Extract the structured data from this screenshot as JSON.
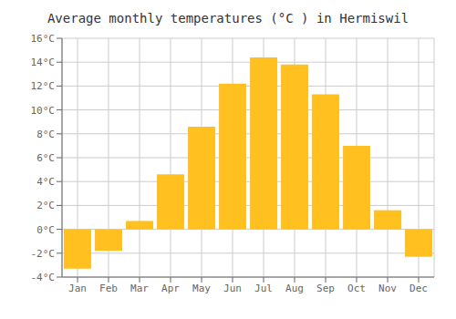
{
  "chart_data": {
    "type": "bar",
    "title": "Average monthly temperatures (°C ) in Hermiswil",
    "categories": [
      "Jan",
      "Feb",
      "Mar",
      "Apr",
      "May",
      "Jun",
      "Jul",
      "Aug",
      "Sep",
      "Oct",
      "Nov",
      "Dec"
    ],
    "values": [
      -3.3,
      -1.8,
      0.7,
      4.6,
      8.6,
      12.2,
      14.4,
      13.8,
      11.3,
      7.0,
      1.6,
      -2.3
    ],
    "color": "#FFC020",
    "ylim": [
      -4,
      16
    ],
    "yticks": [
      {
        "value": -4,
        "label": "-4°C"
      },
      {
        "value": -2,
        "label": "-2°C"
      },
      {
        "value": 0,
        "label": "0°C"
      },
      {
        "value": 2,
        "label": "2°C"
      },
      {
        "value": 4,
        "label": "4°C"
      },
      {
        "value": 6,
        "label": "6°C"
      },
      {
        "value": 8,
        "label": "8°C"
      },
      {
        "value": 10,
        "label": "10°C"
      },
      {
        "value": 12,
        "label": "12°C"
      },
      {
        "value": 14,
        "label": "14°C"
      },
      {
        "value": 16,
        "label": "16°C"
      }
    ],
    "grid": true
  }
}
